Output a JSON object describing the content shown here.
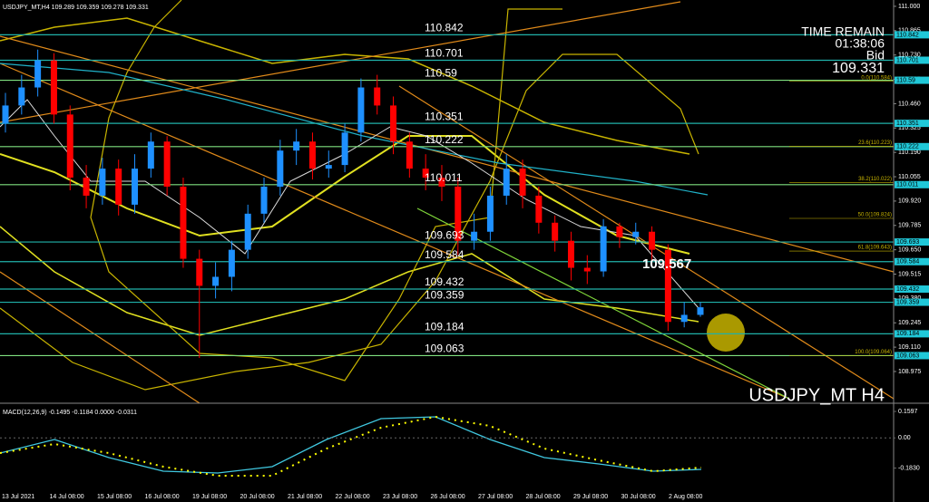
{
  "chart_data": {
    "type": "candlestick",
    "title": "USDJPY_MT,H4 109.289 109.359 109.278 109.331",
    "watermark": "USDJPY_MT H4",
    "open": [
      110.35,
      110.45,
      110.55,
      110.7,
      110.4,
      110.05,
      109.95,
      110.1,
      109.9,
      110.1,
      110.25,
      110.0,
      109.6,
      109.45,
      109.5,
      109.65,
      109.85,
      110.0,
      110.2,
      110.25,
      110.1,
      110.12,
      110.3,
      110.55,
      110.45,
      110.25,
      110.1,
      110.05,
      110.0,
      109.7,
      109.75,
      109.95,
      110.1,
      109.95,
      109.8,
      109.7,
      109.55,
      109.53,
      109.78,
      109.72,
      109.75,
      109.65,
      109.25,
      109.289
    ],
    "high": [
      110.52,
      110.62,
      110.76,
      110.74,
      110.45,
      110.12,
      110.16,
      110.15,
      110.18,
      110.3,
      110.28,
      110.05,
      109.65,
      109.58,
      109.7,
      109.9,
      110.05,
      110.26,
      110.32,
      110.3,
      110.2,
      110.35,
      110.6,
      110.62,
      110.5,
      110.3,
      110.18,
      110.12,
      110.05,
      109.85,
      110.0,
      110.18,
      110.15,
      110.0,
      109.84,
      109.75,
      109.62,
      109.82,
      109.8,
      109.8,
      109.78,
      109.68,
      109.36,
      109.359
    ],
    "low": [
      110.3,
      110.4,
      110.5,
      110.35,
      109.98,
      109.88,
      109.9,
      109.84,
      109.85,
      110.05,
      109.95,
      109.55,
      109.05,
      109.38,
      109.42,
      109.6,
      109.8,
      109.95,
      110.12,
      110.04,
      110.05,
      110.08,
      110.25,
      110.4,
      110.18,
      110.05,
      109.98,
      109.92,
      109.62,
      109.65,
      109.7,
      109.9,
      109.88,
      109.74,
      109.64,
      109.48,
      109.46,
      109.5,
      109.66,
      109.68,
      109.58,
      109.2,
      109.22,
      109.278
    ],
    "close": [
      110.45,
      110.55,
      110.7,
      110.4,
      110.05,
      109.95,
      110.1,
      109.9,
      110.1,
      110.25,
      110.0,
      109.6,
      109.45,
      109.5,
      109.65,
      109.85,
      110.0,
      110.2,
      110.25,
      110.1,
      110.12,
      110.3,
      110.55,
      110.45,
      110.25,
      110.1,
      110.05,
      110.0,
      109.7,
      109.75,
      109.95,
      110.1,
      109.95,
      109.8,
      109.7,
      109.55,
      109.53,
      109.78,
      109.72,
      109.75,
      109.65,
      109.25,
      109.289,
      109.331
    ],
    "up_color": "#1e90ff",
    "down_color": "#ff0000",
    "ylim": [
      108.799,
      111.035
    ],
    "yticks": [
      {
        "value": 111,
        "label": "111.000"
      },
      110.865,
      {
        "value": 110.73,
        "label": "110.730"
      },
      110.595,
      {
        "value": 110.46,
        "label": "110.460"
      },
      110.325,
      {
        "value": 110.19,
        "label": "110.190"
      },
      110.055,
      {
        "value": 109.92,
        "label": "109.920"
      },
      109.785,
      {
        "value": 109.65,
        "label": "109.650"
      },
      109.515,
      {
        "value": 109.38,
        "label": "109.380"
      },
      109.245,
      {
        "value": 109.11,
        "label": "109.110"
      },
      108.975
    ],
    "xlabels": [
      "13 Jul 2021",
      "14 Jul 08:00",
      "15 Jul 08:00",
      "16 Jul 08:00",
      "19 Jul 08:00",
      "20 Jul 08:00",
      "21 Jul 08:00",
      "22 Jul 08:00",
      "23 Jul 08:00",
      "26 Jul 08:00",
      "27 Jul 08:00",
      "28 Jul 08:00",
      "29 Jul 08:00",
      "30 Jul 08:00",
      "2 Aug 08:00"
    ],
    "levels": [
      110.842,
      110.701,
      110.59,
      110.351,
      110.222,
      110.011,
      109.693,
      109.584,
      109.432,
      109.359,
      109.184,
      109.063
    ],
    "fib": [
      {
        "value": 110.584,
        "label": "0.0(110.584)"
      },
      {
        "value": 110.223,
        "label": "23.6(110.223)"
      },
      {
        "value": 110.022,
        "label": "38.2(110.022)"
      },
      {
        "value": 109.824,
        "label": "50.0(109.824)"
      },
      {
        "value": 109.643,
        "label": "61.8(109.643)"
      },
      {
        "value": 109.064,
        "label": "100.0(109.064)"
      }
    ],
    "marker": 109.567,
    "info": [
      "TIME REMAIN",
      "01:38:06",
      "Bid",
      "109.331"
    ],
    "macd": {
      "label": "MACD(12,26,9) -0.1495 -0.1184 0.0000 -0.0311",
      "ylim": [
        -0.3116,
        0.193
      ],
      "yticks": [
        0.1597,
        {
          "value": 0,
          "label": "0.00"
        },
        {
          "value": -0.183,
          "label": "-0.1830"
        }
      ]
    }
  }
}
